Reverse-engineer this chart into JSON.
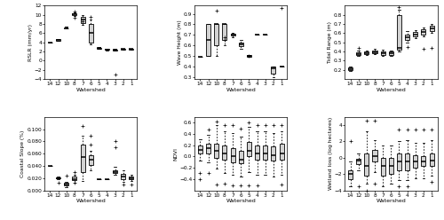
{
  "watersheds": [
    14,
    12,
    10,
    8,
    7,
    6,
    5,
    4,
    3,
    2,
    1
  ],
  "xlabels": [
    "14",
    "12",
    "10",
    "8",
    "7",
    "6",
    "5",
    "4",
    "3",
    "2",
    "1"
  ],
  "rslr": {
    "ylabel": "RSLR (mm/yr)",
    "ylim": [
      -4,
      12
    ],
    "yticks": [
      -4,
      -2,
      0,
      2,
      4,
      6,
      8,
      10,
      12
    ],
    "data": {
      "14": {
        "med": 4.0,
        "q1": 4.0,
        "q3": 4.0,
        "whlo": 4.0,
        "whhi": 4.0,
        "out": []
      },
      "12": {
        "med": 4.5,
        "q1": 4.3,
        "q3": 4.7,
        "whlo": 4.3,
        "whhi": 4.7,
        "out": []
      },
      "10": {
        "med": 7.0,
        "q1": 7.0,
        "q3": 7.0,
        "whlo": 7.3,
        "whhi": 7.3,
        "out": []
      },
      "8": {
        "med": 10.1,
        "q1": 9.9,
        "q3": 10.3,
        "whlo": 9.7,
        "whhi": 10.5,
        "out": [
          9.3,
          10.7
        ]
      },
      "7": {
        "med": 9.0,
        "q1": 8.2,
        "q3": 9.5,
        "whlo": 7.8,
        "whhi": 9.9,
        "out": [
          8.5
        ]
      },
      "6": {
        "med": 6.0,
        "q1": 4.0,
        "q3": 8.0,
        "whlo": 3.5,
        "whhi": 9.0,
        "out": [
          9.5
        ]
      },
      "5": {
        "med": 2.7,
        "q1": 2.6,
        "q3": 2.8,
        "whlo": 2.5,
        "whhi": 2.9,
        "out": []
      },
      "4": {
        "med": 2.4,
        "q1": 2.3,
        "q3": 2.5,
        "whlo": 2.2,
        "whhi": 2.6,
        "out": []
      },
      "3": {
        "med": 2.3,
        "q1": 2.2,
        "q3": 2.4,
        "whlo": 2.1,
        "whhi": 2.5,
        "out": [
          -3.0
        ]
      },
      "2": {
        "med": 2.5,
        "q1": 2.4,
        "q3": 2.6,
        "whlo": 2.4,
        "whhi": 2.6,
        "out": []
      },
      "1": {
        "med": 2.5,
        "q1": 2.4,
        "q3": 2.6,
        "whlo": 2.4,
        "whhi": 2.6,
        "out": []
      }
    }
  },
  "wave": {
    "ylabel": "Wave Height (m)",
    "ylim": [
      0.28,
      0.98
    ],
    "yticks": [
      0.3,
      0.4,
      0.5,
      0.6,
      0.7,
      0.8,
      0.9
    ],
    "data": {
      "14": {
        "med": 0.49,
        "q1": 0.49,
        "q3": 0.49,
        "whlo": 0.49,
        "whhi": 0.49,
        "out": []
      },
      "12": {
        "med": 0.65,
        "q1": 0.5,
        "q3": 0.8,
        "whlo": 0.5,
        "whhi": 0.8,
        "out": []
      },
      "10": {
        "med": 0.8,
        "q1": 0.6,
        "q3": 0.8,
        "whlo": 0.5,
        "whhi": 0.8,
        "out": [
          0.93
        ]
      },
      "8": {
        "med": 0.8,
        "q1": 0.65,
        "q3": 0.8,
        "whlo": 0.6,
        "whhi": 0.8,
        "out": [
          0.65,
          0.68
        ]
      },
      "7": {
        "med": 0.7,
        "q1": 0.69,
        "q3": 0.71,
        "whlo": 0.68,
        "whhi": 0.72,
        "out": []
      },
      "6": {
        "med": 0.61,
        "q1": 0.59,
        "q3": 0.63,
        "whlo": 0.57,
        "whhi": 0.65,
        "out": []
      },
      "5": {
        "med": 0.5,
        "q1": 0.49,
        "q3": 0.51,
        "whlo": 0.49,
        "whhi": 0.51,
        "out": [
          0.5
        ]
      },
      "4": {
        "med": 0.7,
        "q1": 0.7,
        "q3": 0.7,
        "whlo": 0.7,
        "whhi": 0.7,
        "out": []
      },
      "3": {
        "med": 0.7,
        "q1": 0.7,
        "q3": 0.7,
        "whlo": 0.7,
        "whhi": 0.7,
        "out": []
      },
      "2": {
        "med": 0.38,
        "q1": 0.33,
        "q3": 0.4,
        "whlo": 0.3,
        "whhi": 0.4,
        "out": []
      },
      "1": {
        "med": 0.4,
        "q1": 0.4,
        "q3": 0.4,
        "whlo": 0.4,
        "whhi": 0.4,
        "out": [
          0.96
        ]
      }
    }
  },
  "tidal": {
    "ylabel": "Tidal Range (m)",
    "ylim": [
      0.1,
      0.9
    ],
    "yticks": [
      0.2,
      0.3,
      0.4,
      0.5,
      0.6,
      0.7,
      0.8
    ],
    "data": {
      "14": {
        "med": 0.21,
        "q1": 0.2,
        "q3": 0.22,
        "whlo": 0.19,
        "whhi": 0.23,
        "out": []
      },
      "12": {
        "med": 0.37,
        "q1": 0.36,
        "q3": 0.39,
        "whlo": 0.35,
        "whhi": 0.41,
        "out": [
          0.44
        ]
      },
      "10": {
        "med": 0.38,
        "q1": 0.37,
        "q3": 0.4,
        "whlo": 0.36,
        "whhi": 0.41,
        "out": []
      },
      "8": {
        "med": 0.39,
        "q1": 0.38,
        "q3": 0.41,
        "whlo": 0.37,
        "whhi": 0.43,
        "out": []
      },
      "7": {
        "med": 0.38,
        "q1": 0.36,
        "q3": 0.4,
        "whlo": 0.35,
        "whhi": 0.42,
        "out": []
      },
      "6": {
        "med": 0.38,
        "q1": 0.36,
        "q3": 0.4,
        "whlo": 0.35,
        "whhi": 0.41,
        "out": []
      },
      "5": {
        "med": 0.44,
        "q1": 0.42,
        "q3": 0.8,
        "whlo": 0.4,
        "whhi": 0.85,
        "out": [
          0.88
        ]
      },
      "4": {
        "med": 0.55,
        "q1": 0.52,
        "q3": 0.58,
        "whlo": 0.5,
        "whhi": 0.62,
        "out": [
          0.45
        ]
      },
      "3": {
        "med": 0.58,
        "q1": 0.56,
        "q3": 0.61,
        "whlo": 0.54,
        "whhi": 0.63,
        "out": []
      },
      "2": {
        "med": 0.61,
        "q1": 0.58,
        "q3": 0.64,
        "whlo": 0.56,
        "whhi": 0.66,
        "out": [
          0.43
        ]
      },
      "1": {
        "med": 0.65,
        "q1": 0.62,
        "q3": 0.68,
        "whlo": 0.6,
        "whhi": 0.7,
        "out": [
          0.44
        ]
      }
    }
  },
  "slope": {
    "ylabel": "Coastal Slope (%)",
    "ylim": [
      0.0,
      0.12
    ],
    "yticks": [
      0.0,
      0.02,
      0.04,
      0.06,
      0.08,
      0.1
    ],
    "ytick_labels": [
      "0.000",
      "0.020",
      "0.040",
      "0.060",
      "0.080",
      "0.100"
    ],
    "data": {
      "14": {
        "med": 0.04,
        "q1": 0.04,
        "q3": 0.04,
        "whlo": 0.04,
        "whhi": 0.04,
        "out": []
      },
      "12": {
        "med": 0.02,
        "q1": 0.019,
        "q3": 0.021,
        "whlo": 0.018,
        "whhi": 0.022,
        "out": [
          0.013
        ]
      },
      "10": {
        "med": 0.01,
        "q1": 0.008,
        "q3": 0.012,
        "whlo": 0.005,
        "whhi": 0.014,
        "out": [
          0.024
        ]
      },
      "8": {
        "med": 0.018,
        "q1": 0.016,
        "q3": 0.022,
        "whlo": 0.013,
        "whhi": 0.025,
        "out": [
          0.03,
          0.012
        ]
      },
      "7": {
        "med": 0.054,
        "q1": 0.03,
        "q3": 0.075,
        "whlo": 0.015,
        "whhi": 0.09,
        "out": [
          0.105
        ]
      },
      "6": {
        "med": 0.05,
        "q1": 0.042,
        "q3": 0.058,
        "whlo": 0.033,
        "whhi": 0.065,
        "out": [
          0.075,
          0.09
        ]
      },
      "5": {
        "med": 0.018,
        "q1": 0.018,
        "q3": 0.018,
        "whlo": 0.018,
        "whhi": 0.018,
        "out": []
      },
      "4": {
        "med": 0.018,
        "q1": 0.018,
        "q3": 0.018,
        "whlo": 0.018,
        "whhi": 0.018,
        "out": []
      },
      "3": {
        "med": 0.03,
        "q1": 0.028,
        "q3": 0.033,
        "whlo": 0.025,
        "whhi": 0.038,
        "out": [
          0.07,
          0.08
        ]
      },
      "2": {
        "med": 0.022,
        "q1": 0.018,
        "q3": 0.027,
        "whlo": 0.014,
        "whhi": 0.032,
        "out": [
          0.01
        ]
      },
      "1": {
        "med": 0.02,
        "q1": 0.018,
        "q3": 0.022,
        "whlo": 0.015,
        "whhi": 0.026,
        "out": [
          0.01
        ]
      }
    }
  },
  "ndvi": {
    "ylabel": "NDVI",
    "ylim": [
      -0.6,
      0.7
    ],
    "yticks": [
      -0.4,
      -0.2,
      0.0,
      0.2,
      0.4,
      0.6
    ],
    "data": {
      "14": {
        "med": 0.12,
        "q1": 0.06,
        "q3": 0.2,
        "whlo": -0.08,
        "whhi": 0.3,
        "out": [
          -0.3,
          -0.4
        ]
      },
      "12": {
        "med": 0.15,
        "q1": 0.05,
        "q3": 0.23,
        "whlo": -0.1,
        "whhi": 0.38,
        "out": [
          -0.3,
          0.48
        ]
      },
      "10": {
        "med": 0.1,
        "q1": -0.02,
        "q3": 0.22,
        "whlo": -0.22,
        "whhi": 0.55,
        "out": [
          0.62,
          -0.5
        ]
      },
      "8": {
        "med": 0.05,
        "q1": -0.05,
        "q3": 0.2,
        "whlo": -0.3,
        "whhi": 0.45,
        "out": [
          0.55,
          -0.48
        ]
      },
      "7": {
        "med": 0.0,
        "q1": -0.1,
        "q3": 0.15,
        "whlo": -0.32,
        "whhi": 0.42,
        "out": [
          -0.52,
          0.55
        ]
      },
      "6": {
        "med": -0.05,
        "q1": -0.12,
        "q3": 0.1,
        "whlo": -0.35,
        "whhi": 0.35,
        "out": [
          -0.52,
          0.5
        ]
      },
      "5": {
        "med": 0.1,
        "q1": 0.0,
        "q3": 0.25,
        "whlo": -0.28,
        "whhi": 0.52,
        "out": [
          0.6,
          -0.52
        ]
      },
      "4": {
        "med": 0.05,
        "q1": -0.05,
        "q3": 0.2,
        "whlo": -0.32,
        "whhi": 0.45,
        "out": [
          -0.52,
          0.55
        ]
      },
      "3": {
        "med": 0.05,
        "q1": -0.06,
        "q3": 0.2,
        "whlo": -0.32,
        "whhi": 0.45,
        "out": [
          0.55
        ]
      },
      "2": {
        "med": 0.02,
        "q1": -0.08,
        "q3": 0.18,
        "whlo": -0.35,
        "whhi": 0.42,
        "out": [
          0.55
        ]
      },
      "1": {
        "med": 0.05,
        "q1": -0.05,
        "q3": 0.22,
        "whlo": -0.32,
        "whhi": 0.45,
        "out": [
          0.55,
          -0.5
        ]
      }
    }
  },
  "wetland": {
    "ylabel": "Wetland loss (log hectares)",
    "ylim": [
      -4,
      5
    ],
    "yticks": [
      -4,
      -2,
      0,
      2,
      4
    ],
    "data": {
      "14": {
        "med": -2.0,
        "q1": -2.6,
        "q3": -1.5,
        "whlo": -3.5,
        "whhi": -0.5,
        "out": [
          2.0
        ]
      },
      "12": {
        "med": -0.4,
        "q1": -0.8,
        "q3": -0.1,
        "whlo": -1.5,
        "whhi": 0.5,
        "out": [
          -3.5
        ]
      },
      "10": {
        "med": -1.0,
        "q1": -2.2,
        "q3": 0.5,
        "whlo": -3.2,
        "whhi": 3.2,
        "out": [
          4.5,
          -4.0
        ]
      },
      "8": {
        "med": 0.2,
        "q1": -0.5,
        "q3": 1.0,
        "whlo": -1.8,
        "whhi": 2.2,
        "out": [
          4.5,
          -3.2
        ]
      },
      "7": {
        "med": -1.0,
        "q1": -2.2,
        "q3": 0.0,
        "whlo": -3.5,
        "whhi": 1.5,
        "out": []
      },
      "6": {
        "med": -1.0,
        "q1": -2.0,
        "q3": 0.0,
        "whlo": -3.2,
        "whhi": 1.5,
        "out": []
      },
      "5": {
        "med": -0.5,
        "q1": -1.5,
        "q3": 0.5,
        "whlo": -2.8,
        "whhi": 2.0,
        "out": [
          3.5,
          -3.5
        ]
      },
      "4": {
        "med": -0.5,
        "q1": -1.5,
        "q3": 0.5,
        "whlo": -2.8,
        "whhi": 2.2,
        "out": [
          3.5,
          -3.5
        ]
      },
      "3": {
        "med": -0.5,
        "q1": -1.2,
        "q3": 0.3,
        "whlo": -2.5,
        "whhi": 1.8,
        "out": [
          3.5
        ]
      },
      "2": {
        "med": -0.5,
        "q1": -1.0,
        "q3": 0.2,
        "whlo": -2.5,
        "whhi": 1.8,
        "out": [
          3.5
        ]
      },
      "1": {
        "med": -0.3,
        "q1": -1.0,
        "q3": 0.5,
        "whlo": -2.2,
        "whhi": 2.2,
        "out": [
          3.5,
          -3.0
        ]
      }
    }
  },
  "box_facecolor": "#d3d3d3",
  "box_edgecolor": "#000000",
  "whisker_color": "#000000",
  "median_color": "#000000",
  "flier_marker": "+",
  "flier_color": "#000000"
}
